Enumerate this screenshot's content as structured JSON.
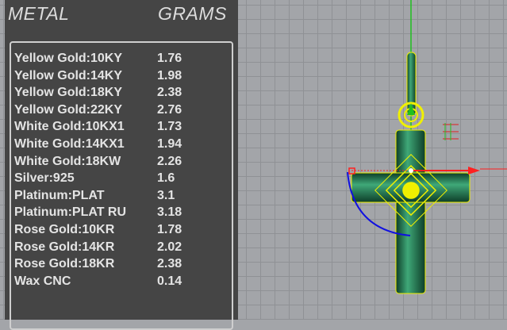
{
  "header": {
    "metal_label": "METAL",
    "grams_label": "GRAMS"
  },
  "rows": [
    {
      "metal": "Yellow Gold:10KY",
      "grams": "1.76"
    },
    {
      "metal": "Yellow Gold:14KY",
      "grams": "1.98"
    },
    {
      "metal": "Yellow Gold:18KY",
      "grams": "2.38"
    },
    {
      "metal": "Yellow Gold:22KY",
      "grams": "2.76"
    },
    {
      "metal": "White Gold:10KX1",
      "grams": "1.73"
    },
    {
      "metal": "White Gold:14KX1",
      "grams": "1.94"
    },
    {
      "metal": "White Gold:18KW",
      "grams": "2.26"
    },
    {
      "metal": "Silver:925",
      "grams": "1.6"
    },
    {
      "metal": "Platinum:PLAT",
      "grams": "3.1"
    },
    {
      "metal": "Platinum:PLAT RU",
      "grams": "3.18"
    },
    {
      "metal": "Rose Gold:10KR",
      "grams": "1.78"
    },
    {
      "metal": "Rose Gold:14KR",
      "grams": "2.02"
    },
    {
      "metal": "Rose Gold:18KR",
      "grams": "2.38"
    },
    {
      "metal": "Wax  CNC",
      "grams": "0.14"
    }
  ],
  "colors": {
    "panel": "#454545",
    "viewport": "#a3a5a9",
    "selection": "#f0f000",
    "model": "#1f6e4e",
    "x_axis": "#ff2020",
    "y_axis": "#20c020",
    "rotation": "#1010e0"
  }
}
